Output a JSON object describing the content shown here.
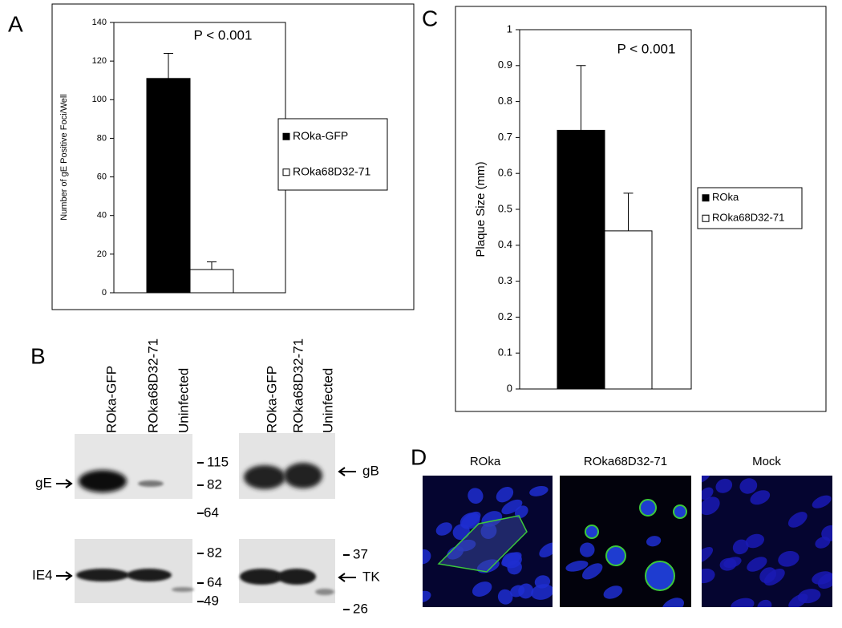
{
  "chart_data": [
    {
      "type": "bar",
      "panel_label": "A",
      "annotation": "P < 0.001",
      "ylabel": "Number of gE Positive Foci/Well",
      "categories": [
        null
      ],
      "series": [
        {
          "name": "ROka-GFP",
          "color": "#000000",
          "values": [
            111
          ],
          "errors": [
            13
          ]
        },
        {
          "name": "ROka68D32-71",
          "color": "#ffffff",
          "values": [
            12
          ],
          "errors": [
            4
          ]
        }
      ],
      "ylim": [
        0,
        140
      ],
      "yticks": [
        0,
        20,
        40,
        60,
        80,
        100,
        120,
        140
      ],
      "legend": "right"
    },
    {
      "type": "bar",
      "panel_label": "C",
      "annotation": "P < 0.001",
      "ylabel": "Plaque Size (mm)",
      "categories": [
        null
      ],
      "series": [
        {
          "name": "ROka",
          "color": "#000000",
          "values": [
            0.72
          ],
          "errors": [
            0.18
          ]
        },
        {
          "name": "ROka68D32-71",
          "color": "#ffffff",
          "values": [
            0.44
          ],
          "errors": [
            0.105
          ]
        }
      ],
      "ylim": [
        0,
        1
      ],
      "yticks": [
        0,
        0.1,
        0.2,
        0.3,
        0.4,
        0.5,
        0.6,
        0.7,
        0.8,
        0.9,
        1
      ],
      "legend": "right"
    }
  ],
  "blots": {
    "panel_label": "B",
    "left": {
      "lanes": [
        "ROka-GFP",
        "ROka68D32-71",
        "Uninfected"
      ],
      "top": {
        "protein": "gE",
        "markers": [
          115,
          82,
          64
        ]
      },
      "bottom": {
        "protein": "IE4",
        "markers": [
          82,
          64,
          49
        ]
      }
    },
    "right": {
      "lanes": [
        "ROka-GFP",
        "ROka68D32-71",
        "Uninfected"
      ],
      "top": {
        "protein": "gB"
      },
      "bottom": {
        "protein": "TK",
        "markers": [
          37,
          26
        ]
      }
    }
  },
  "microscopy": {
    "panel_label": "D",
    "conditions": [
      "ROka",
      "ROka68D32-71",
      "Mock"
    ]
  }
}
